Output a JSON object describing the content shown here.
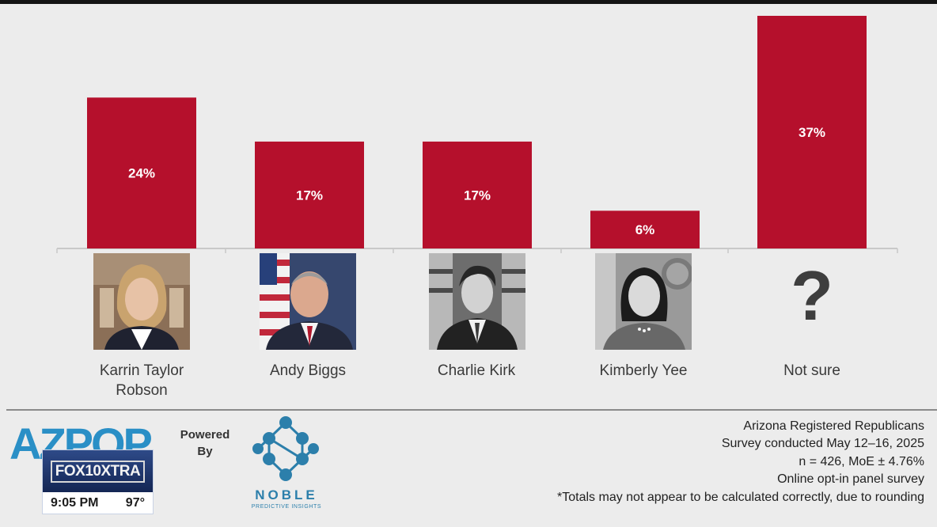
{
  "chart_data": {
    "type": "bar",
    "categories": [
      "Karrin Taylor Robson",
      "Andy Biggs",
      "Charlie Kirk",
      "Kimberly Yee",
      "Not sure"
    ],
    "values": [
      24,
      17,
      17,
      6,
      37
    ],
    "labels": [
      "24%",
      "17%",
      "17%",
      "6%",
      "37%"
    ],
    "ylim": [
      0,
      37
    ],
    "grid": false,
    "bar_color": "#b5102c"
  },
  "candidates": [
    {
      "name_line1": "Karrin Taylor",
      "name_line2": "Robson",
      "photo": "photo-of-karrin-taylor-robson"
    },
    {
      "name_line1": "Andy Biggs",
      "name_line2": "",
      "photo": "photo-of-andy-biggs"
    },
    {
      "name_line1": "Charlie Kirk",
      "name_line2": "",
      "photo": "photo-of-charlie-kirk"
    },
    {
      "name_line1": "Kimberly Yee",
      "name_line2": "",
      "photo": "photo-of-kimberly-yee"
    },
    {
      "name_line1": "Not sure",
      "name_line2": "",
      "photo": "question-mark"
    }
  ],
  "question_mark": "?",
  "footer": {
    "logo_text": "AZPOP",
    "powered_by_1": "Powered",
    "powered_by_2": "By",
    "noble_name": "NOBLE",
    "noble_sub": "PREDICTIVE INSIGHTS",
    "notes": [
      "Arizona Registered Republicans",
      "Survey conducted May 12–16, 2025",
      "n = 426, MoE ± 4.76%",
      "Online opt-in panel survey",
      "*Totals may not appear to be calculated correctly, due to rounding"
    ]
  },
  "broadcast": {
    "logo": "FOX10XTRA",
    "time": "9:05 PM",
    "temp": "97°"
  },
  "colors": {
    "bar": "#b5102c",
    "noble_blue": "#2c7fab",
    "azpop_blue": "#2a8fc6",
    "background": "#ececec"
  }
}
